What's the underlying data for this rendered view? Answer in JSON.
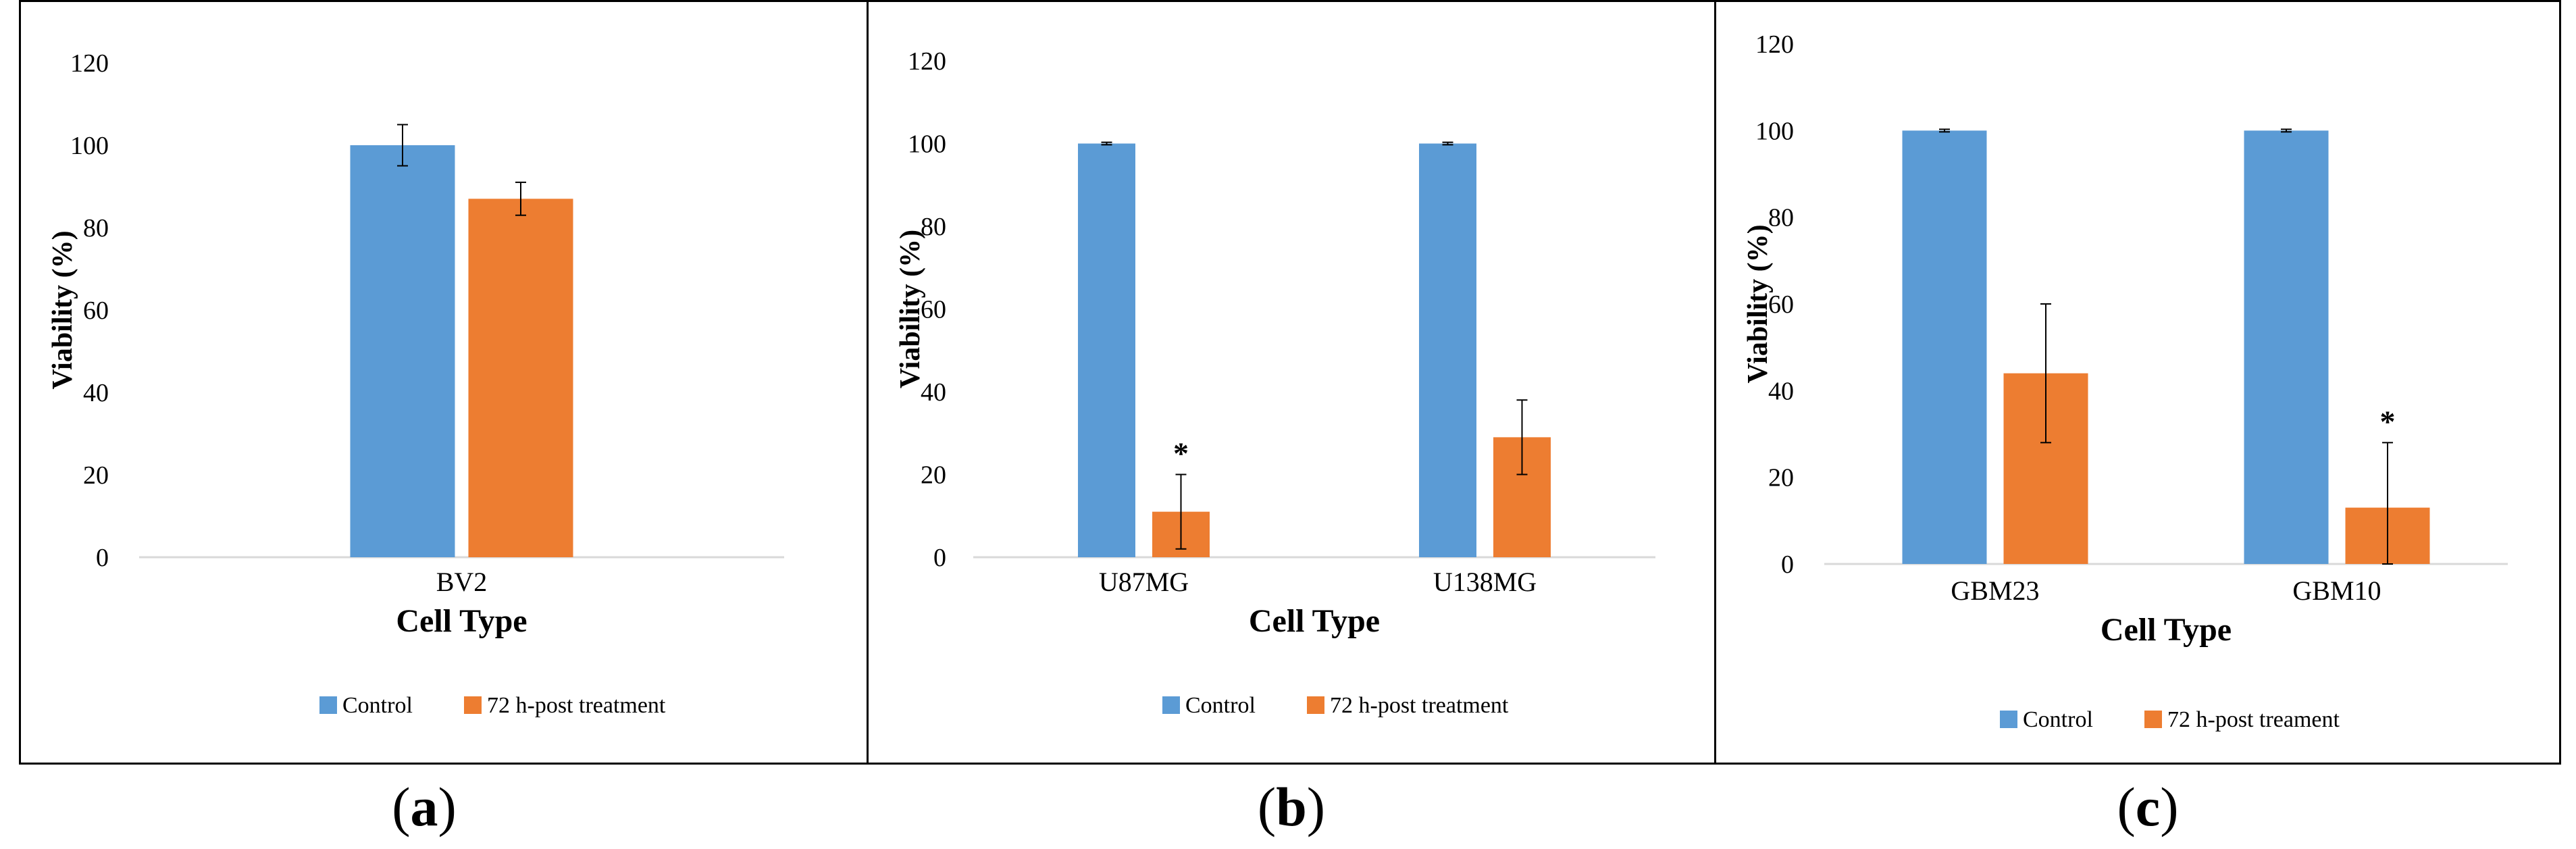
{
  "colors": {
    "control": "#5B9BD5",
    "treatment": "#ED7D31",
    "axis": "#D9D9D9"
  },
  "chart_data": [
    {
      "type": "bar",
      "panel": "a",
      "categories": [
        "BV2"
      ],
      "series": [
        {
          "name": "Control",
          "values": [
            100
          ],
          "errors": [
            5
          ]
        },
        {
          "name": "72 h-post treatment",
          "values": [
            87
          ],
          "errors": [
            4
          ]
        }
      ],
      "significance": [
        [
          null,
          null
        ]
      ],
      "xlabel": "Cell Type",
      "ylabel": "Viability (%)",
      "ylim": [
        0,
        120
      ],
      "yticks": [
        0,
        20,
        40,
        60,
        80,
        100,
        120
      ],
      "ytick_labels": [
        "0",
        "20",
        "40",
        "60",
        "80",
        "100",
        "120"
      ],
      "legend": [
        "Control",
        "72 h-post treatment"
      ],
      "legend_position": "bottom-center"
    },
    {
      "type": "bar",
      "panel": "b",
      "categories": [
        "U87MG",
        "U138MG"
      ],
      "series": [
        {
          "name": "Control",
          "values": [
            100,
            100
          ],
          "errors": [
            0.3,
            0.3
          ]
        },
        {
          "name": "72 h-post treatment",
          "values": [
            11,
            29
          ],
          "errors": [
            9,
            9
          ]
        }
      ],
      "significance": [
        [
          null,
          "*"
        ],
        [
          null,
          null
        ]
      ],
      "xlabel": "Cell Type",
      "ylabel": "Viability (%)",
      "ylim": [
        0,
        120
      ],
      "yticks": [
        0,
        20,
        40,
        60,
        80,
        100,
        120
      ],
      "ytick_labels": [
        "0",
        "20",
        "40",
        "60",
        "80",
        "100",
        "120"
      ],
      "legend": [
        "Control",
        "72 h-post treatment"
      ],
      "legend_position": "bottom-center"
    },
    {
      "type": "bar",
      "panel": "c",
      "categories": [
        "GBM23",
        "GBM10"
      ],
      "series": [
        {
          "name": "Control",
          "values": [
            100,
            100
          ],
          "errors": [
            0.3,
            0.3
          ]
        },
        {
          "name": "72 h-post treament",
          "values": [
            44,
            13
          ],
          "errors": [
            16,
            15
          ]
        }
      ],
      "significance": [
        [
          null,
          null
        ],
        [
          null,
          "*"
        ]
      ],
      "xlabel": "Cell Type",
      "ylabel": "Viability (%)",
      "ylim": [
        0,
        120
      ],
      "yticks": [
        0,
        20,
        40,
        60,
        80,
        100,
        120
      ],
      "ytick_labels": [
        "0",
        "20",
        "40",
        "60",
        "80",
        "100",
        "120"
      ],
      "legend": [
        "Control",
        "72 h-post treament"
      ],
      "legend_position": "bottom-center"
    }
  ],
  "captions": {
    "a": "a",
    "b": "b",
    "c": "c"
  }
}
